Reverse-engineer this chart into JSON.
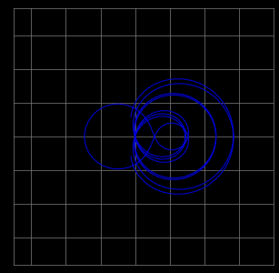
{
  "t_min": -30,
  "t_max": 30,
  "t_points": 10000,
  "line_color": "#0000cc",
  "line_width": 0.8,
  "background_color": "#000000",
  "grid_color": "#808080",
  "grid_linewidth": 0.5,
  "grid_linestyle": "-",
  "xlim": [
    -3.5,
    4.0
  ],
  "ylim": [
    -3.8,
    3.8
  ],
  "xticks": [
    -3,
    -2,
    -1,
    0,
    1,
    2,
    3,
    4
  ],
  "yticks": [
    -3,
    -2,
    -1,
    0,
    1,
    2,
    3
  ],
  "figsize": [
    3.07,
    3.0
  ],
  "dpi": 100
}
